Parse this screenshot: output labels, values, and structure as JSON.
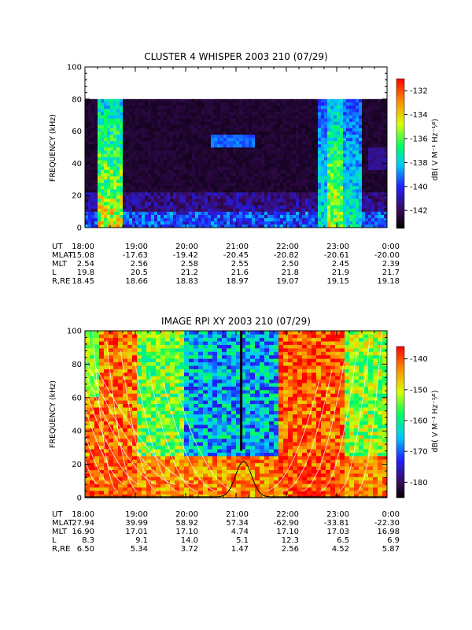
{
  "chart_data": [
    {
      "type": "heatmap",
      "title": "CLUSTER 4 WHISPER 2003 210 (07/29)",
      "ylabel": "FREQUENCY (kHz)",
      "ylim": [
        0,
        100
      ],
      "yticks": [
        "0",
        "20",
        "40",
        "60",
        "80",
        "100"
      ],
      "xlim": [
        "18:00",
        "0:00"
      ],
      "data_ceiling_khz": 80,
      "colorbar": {
        "label": "dB( V M⁻¹ Hz⁻¹⁄²)",
        "ticks": [
          "-132",
          "-134",
          "-136",
          "-138",
          "-140",
          "-142"
        ],
        "range": [
          -143.5,
          -131
        ]
      },
      "bright_bands_hours": [
        {
          "start": 0.22,
          "end": 0.78,
          "level": 0.9
        },
        {
          "start": 4.8,
          "end": 5.15,
          "level": 0.85
        },
        {
          "start": 4.6,
          "end": 5.5,
          "level": 0.6
        }
      ],
      "ephemeris": {
        "labels": [
          "UT",
          "MLAT",
          "MLT",
          "L",
          "R,RE"
        ],
        "columns": [
          [
            "18:00",
            "-15.08",
            "2.54",
            "19.8",
            "18.45"
          ],
          [
            "19:00",
            "-17.63",
            "2.56",
            "20.5",
            "18.66"
          ],
          [
            "20:00",
            "-19.42",
            "2.58",
            "21.2",
            "18.83"
          ],
          [
            "21:00",
            "-20.45",
            "2.55",
            "21.6",
            "18.97"
          ],
          [
            "22:00",
            "-20.82",
            "2.50",
            "21.8",
            "19.07"
          ],
          [
            "23:00",
            "-20.61",
            "2.45",
            "21.9",
            "19.15"
          ],
          [
            "0:00",
            "-20.00",
            "2.39",
            "21.7",
            "19.18"
          ]
        ]
      }
    },
    {
      "type": "heatmap",
      "title": "IMAGE RPI XY 2003 210 (07/29)",
      "ylabel": "FREQUENCY (kHz)",
      "ylim": [
        0,
        100
      ],
      "yticks": [
        "0",
        "20",
        "40",
        "60",
        "80",
        "100"
      ],
      "xlim": [
        "18:00",
        "0:00"
      ],
      "colorbar": {
        "label": "dB( V M⁻¹ Hz⁻¹⁄²)",
        "ticks": [
          "-140",
          "-150",
          "-160",
          "-170",
          "-180"
        ],
        "range": [
          -185,
          -136
        ]
      },
      "overlay_curve_peak": {
        "hour": 3.15,
        "freq_khz": 22
      },
      "ephemeris": {
        "labels": [
          "UT",
          "MLAT",
          "MLT",
          "L",
          "R,RE"
        ],
        "columns": [
          [
            "18:00",
            "27.94",
            "16.90",
            "8.3",
            "6.50"
          ],
          [
            "19:00",
            "39.99",
            "17.01",
            "9.1",
            "5.34"
          ],
          [
            "20:00",
            "58.92",
            "17.10",
            "14.0",
            "3.72"
          ],
          [
            "21:00",
            "57.34",
            "4.74",
            "5.1",
            "1.47"
          ],
          [
            "22:00",
            "-62.90",
            "17.10",
            "12.3",
            "2.56"
          ],
          [
            "23:00",
            "-33.81",
            "17.03",
            "6.5",
            "4.52"
          ],
          [
            "0:00",
            "-22.30",
            "16.98",
            "6.9",
            "5.87"
          ]
        ]
      }
    }
  ]
}
